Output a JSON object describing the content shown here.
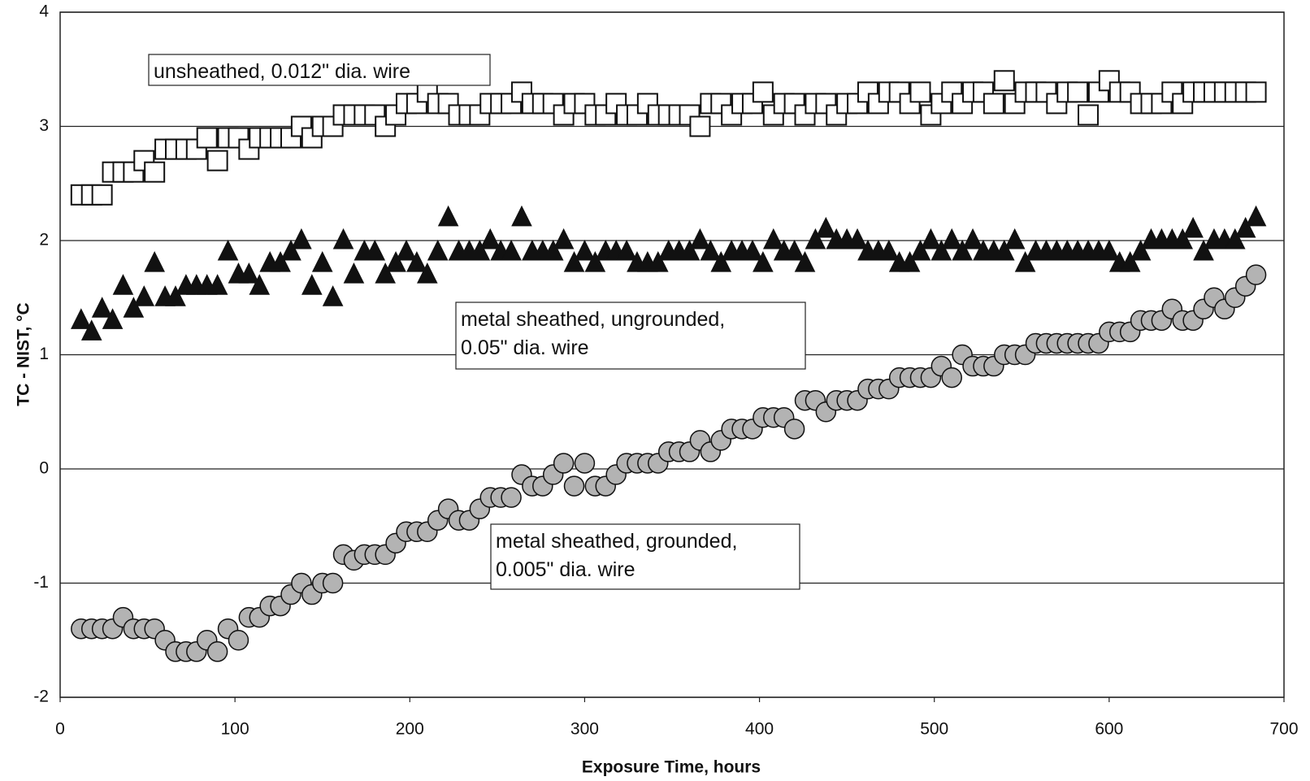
{
  "chart_data": {
    "type": "scatter",
    "x_label": "Exposure Time, hours",
    "y_label": "TC - NIST, °C",
    "xlim": [
      0,
      700
    ],
    "ylim": [
      -2,
      4
    ],
    "xticks": [
      0,
      100,
      200,
      300,
      400,
      500,
      600,
      700
    ],
    "yticks": [
      -2,
      -1,
      0,
      1,
      2,
      3,
      4
    ],
    "grid": "y",
    "annotations": [
      [
        "unsheathed, 0.012\" dia. wire"
      ],
      [
        "metal sheathed, ungrounded,",
        "0.05\" dia. wire"
      ],
      [
        "metal sheathed, grounded,",
        "0.005\" dia. wire"
      ]
    ],
    "x": [
      12,
      18,
      24,
      30,
      36,
      42,
      48,
      54,
      60,
      66,
      72,
      78,
      84,
      90,
      96,
      102,
      108,
      114,
      120,
      126,
      132,
      138,
      144,
      150,
      156,
      162,
      168,
      174,
      180,
      186,
      192,
      198,
      204,
      210,
      216,
      222,
      228,
      234,
      240,
      246,
      252,
      258,
      264,
      270,
      276,
      282,
      288,
      294,
      300,
      306,
      312,
      318,
      324,
      330,
      336,
      342,
      348,
      354,
      360,
      366,
      372,
      378,
      384,
      390,
      396,
      402,
      408,
      414,
      420,
      426,
      432,
      438,
      444,
      450,
      456,
      462,
      468,
      474,
      480,
      486,
      492,
      498,
      504,
      510,
      516,
      522,
      528,
      534,
      540,
      546,
      552,
      558,
      564,
      570,
      576,
      582,
      588,
      594,
      600,
      606,
      612,
      618,
      624,
      630,
      636,
      642,
      648,
      654,
      660,
      666,
      672,
      678,
      684
    ],
    "series": [
      {
        "marker": "square",
        "color": "#ffffff",
        "values": [
          2.4,
          2.4,
          2.4,
          2.6,
          2.6,
          2.6,
          2.7,
          2.6,
          2.8,
          2.8,
          2.8,
          2.8,
          2.9,
          2.7,
          2.9,
          2.9,
          2.8,
          2.9,
          2.9,
          2.9,
          2.9,
          3.0,
          2.9,
          3.0,
          3.0,
          3.1,
          3.1,
          3.1,
          3.1,
          3.0,
          3.1,
          3.2,
          3.2,
          3.3,
          3.2,
          3.2,
          3.1,
          3.1,
          3.1,
          3.2,
          3.2,
          3.2,
          3.3,
          3.2,
          3.2,
          3.2,
          3.1,
          3.2,
          3.2,
          3.1,
          3.1,
          3.2,
          3.1,
          3.1,
          3.2,
          3.1,
          3.1,
          3.1,
          3.1,
          3.0,
          3.2,
          3.2,
          3.1,
          3.2,
          3.2,
          3.3,
          3.1,
          3.2,
          3.2,
          3.1,
          3.2,
          3.2,
          3.1,
          3.2,
          3.2,
          3.3,
          3.2,
          3.3,
          3.3,
          3.2,
          3.3,
          3.1,
          3.2,
          3.3,
          3.2,
          3.3,
          3.3,
          3.2,
          3.4,
          3.2,
          3.3,
          3.3,
          3.3,
          3.2,
          3.3,
          3.3,
          3.1,
          3.3,
          3.4,
          3.3,
          3.3,
          3.2,
          3.2,
          3.2,
          3.3,
          3.2,
          3.3,
          3.3,
          3.3,
          3.3,
          3.3,
          3.3,
          3.3
        ]
      },
      {
        "marker": "triangle",
        "color": "#111111",
        "values": [
          1.3,
          1.2,
          1.4,
          1.3,
          1.6,
          1.4,
          1.5,
          1.8,
          1.5,
          1.5,
          1.6,
          1.6,
          1.6,
          1.6,
          1.9,
          1.7,
          1.7,
          1.6,
          1.8,
          1.8,
          1.9,
          2.0,
          1.6,
          1.8,
          1.5,
          2.0,
          1.7,
          1.9,
          1.9,
          1.7,
          1.8,
          1.9,
          1.8,
          1.7,
          1.9,
          2.2,
          1.9,
          1.9,
          1.9,
          2.0,
          1.9,
          1.9,
          2.2,
          1.9,
          1.9,
          1.9,
          2.0,
          1.8,
          1.9,
          1.8,
          1.9,
          1.9,
          1.9,
          1.8,
          1.8,
          1.8,
          1.9,
          1.9,
          1.9,
          2.0,
          1.9,
          1.8,
          1.9,
          1.9,
          1.9,
          1.8,
          2.0,
          1.9,
          1.9,
          1.8,
          2.0,
          2.1,
          2.0,
          2.0,
          2.0,
          1.9,
          1.9,
          1.9,
          1.8,
          1.8,
          1.9,
          2.0,
          1.9,
          2.0,
          1.9,
          2.0,
          1.9,
          1.9,
          1.9,
          2.0,
          1.8,
          1.9,
          1.9,
          1.9,
          1.9,
          1.9,
          1.9,
          1.9,
          1.9,
          1.8,
          1.8,
          1.9,
          2.0,
          2.0,
          2.0,
          2.0,
          2.1,
          1.9,
          2.0,
          2.0,
          2.0,
          2.1,
          2.2
        ]
      },
      {
        "marker": "circle",
        "color": "#b3b3b3",
        "values": [
          -1.4,
          -1.4,
          -1.4,
          -1.4,
          -1.3,
          -1.4,
          -1.4,
          -1.4,
          -1.5,
          -1.6,
          -1.6,
          -1.6,
          -1.5,
          -1.6,
          -1.4,
          -1.5,
          -1.3,
          -1.3,
          -1.2,
          -1.2,
          -1.1,
          -1.0,
          -1.1,
          -1.0,
          -1.0,
          -0.75,
          -0.8,
          -0.75,
          -0.75,
          -0.75,
          -0.65,
          -0.55,
          -0.55,
          -0.55,
          -0.45,
          -0.35,
          -0.45,
          -0.45,
          -0.35,
          -0.25,
          -0.25,
          -0.25,
          -0.05,
          -0.15,
          -0.15,
          -0.05,
          0.05,
          -0.15,
          0.05,
          -0.15,
          -0.15,
          -0.05,
          0.05,
          0.05,
          0.05,
          0.05,
          0.15,
          0.15,
          0.15,
          0.25,
          0.15,
          0.25,
          0.35,
          0.35,
          0.35,
          0.45,
          0.45,
          0.45,
          0.35,
          0.6,
          0.6,
          0.5,
          0.6,
          0.6,
          0.6,
          0.7,
          0.7,
          0.7,
          0.8,
          0.8,
          0.8,
          0.8,
          0.9,
          0.8,
          1.0,
          0.9,
          0.9,
          0.9,
          1.0,
          1.0,
          1.0,
          1.1,
          1.1,
          1.1,
          1.1,
          1.1,
          1.1,
          1.1,
          1.2,
          1.2,
          1.2,
          1.3,
          1.3,
          1.3,
          1.4,
          1.3,
          1.3,
          1.4,
          1.5,
          1.4,
          1.5,
          1.6,
          1.7
        ]
      }
    ]
  }
}
